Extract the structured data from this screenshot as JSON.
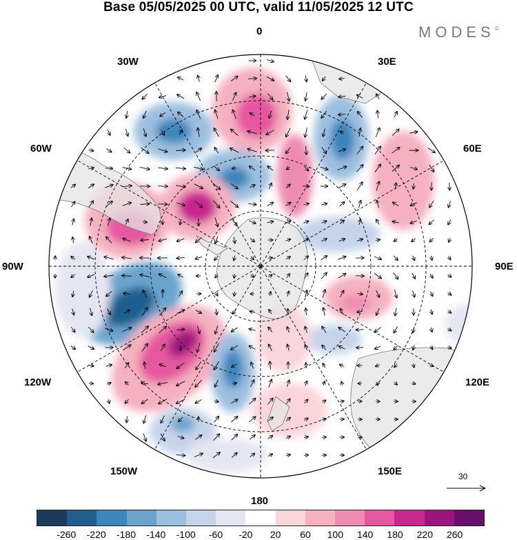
{
  "title": "Base 05/05/2025 00 UTC, valid 11/05/2025 12 UTC",
  "brand": "MODES",
  "brand_mark": "©",
  "longitude_labels": {
    "top": "0",
    "top_right": "30E",
    "right_upper": "60E",
    "right": "90E",
    "right_lower": "120E",
    "bottom_right": "150E",
    "bottom": "180",
    "bottom_left": "150W",
    "left_lower": "120W",
    "left": "90W",
    "left_upper": "60W",
    "top_left": "30W"
  },
  "reference_vector": "30",
  "colorbar": {
    "colors": [
      "#1c3a5a",
      "#1f5e8e",
      "#3b86bb",
      "#6aa4cd",
      "#9dbfdf",
      "#c6d4ea",
      "#e6e6f3",
      "#ffffff",
      "#fad6da",
      "#f5b1c0",
      "#ee8cb0",
      "#e5589f",
      "#c8288e",
      "#9c147e",
      "#6a0e6c"
    ],
    "labels": [
      "-260",
      "-220",
      "-180",
      "-140",
      "-100",
      "-60",
      "-20",
      "20",
      "60",
      "100",
      "140",
      "180",
      "220",
      "260"
    ]
  }
}
